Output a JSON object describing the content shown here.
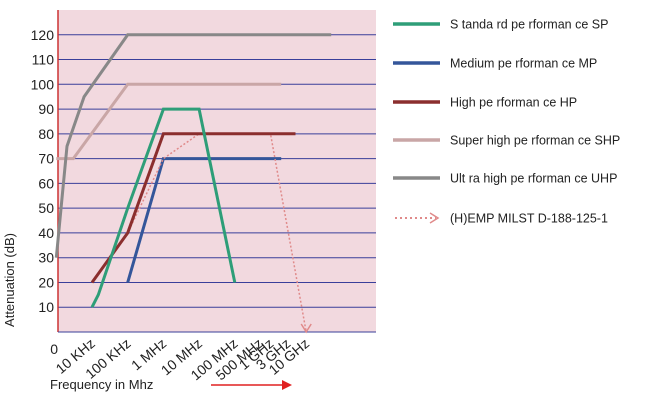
{
  "chart_data": {
    "type": "line",
    "title": "",
    "xlabel": "Frequency in Mhz",
    "ylabel": "Attenuation (dB)",
    "ylim": [
      0,
      130
    ],
    "grid": "horizontal",
    "legend_placement": "right",
    "x_ticks": [
      "10 KHz",
      "100 KHz",
      "1 MHz",
      "10 MHz",
      "100 MHz",
      "500 MHz",
      "1 GHz",
      "3 GHz",
      "10 GHz"
    ],
    "y_ticks": [
      10,
      20,
      30,
      40,
      50,
      60,
      70,
      80,
      90,
      100,
      110,
      120
    ],
    "background": "#f2d9df",
    "colors": {
      "grid": "#3a3f9a",
      "left_axis": "#cc3333",
      "arrow": "#e02020"
    },
    "series": [
      {
        "name": "S tanda rd pe rforman ce SP",
        "color": "#2e9e78",
        "dashed": false,
        "x": [
          "10 KHz",
          "15 KHz",
          "100 KHz",
          "1 MHz",
          "10 MHz",
          "100 MHz"
        ],
        "y": [
          10,
          15,
          50,
          90,
          90,
          20
        ]
      },
      {
        "name": "Medium pe rforman ce MP",
        "color": "#34569a",
        "dashed": false,
        "x": [
          "100 KHz",
          "1 MHz",
          "10 MHz",
          "100 MHz",
          "500 MHz",
          "1 GHz",
          "2 GHz"
        ],
        "y": [
          20,
          70,
          70,
          70,
          70,
          70,
          70
        ]
      },
      {
        "name": "High pe rforman ce HP",
        "color": "#8b2e2e",
        "dashed": false,
        "x": [
          "10 KHz",
          "100 KHz",
          "1 MHz",
          "10 MHz",
          "100 MHz",
          "500 MHz",
          "1 GHz",
          "3 GHz",
          "5 GHz"
        ],
        "y": [
          20,
          40,
          80,
          80,
          80,
          80,
          80,
          80,
          80
        ]
      },
      {
        "name": "Super high pe rforman ce SHP",
        "color": "#c9a6a6",
        "dashed": false,
        "x": [
          "1 KHz",
          "3 KHz",
          "100 KHz",
          "1 MHz",
          "10 MHz",
          "100 MHz",
          "500 MHz",
          "1 GHz",
          "2 GHz"
        ],
        "y": [
          70,
          70,
          100,
          100,
          100,
          100,
          100,
          100,
          100
        ]
      },
      {
        "name": "Ult ra high pe rforman ce UHP",
        "color": "#888888",
        "dashed": false,
        "x": [
          "1 KHz",
          "2 KHz",
          "6 KHz",
          "100 KHz",
          "1 MHz",
          "10 MHz",
          "100 MHz",
          "1 GHz",
          "10 GHz",
          "50 GHz"
        ],
        "y": [
          30,
          75,
          95,
          120,
          120,
          120,
          120,
          120,
          120,
          120
        ]
      },
      {
        "name": "(H)EMP MILST     D-188-125-1",
        "color": "#e08a8a",
        "dashed": true,
        "x": [
          "10 KHz",
          "100 KHz",
          "1 MHz",
          "10 MHz",
          "100 MHz",
          "500 MHz",
          "1 GHz",
          "10 GHz"
        ],
        "y": [
          20,
          40,
          70,
          80,
          80,
          80,
          80,
          0
        ]
      }
    ]
  }
}
